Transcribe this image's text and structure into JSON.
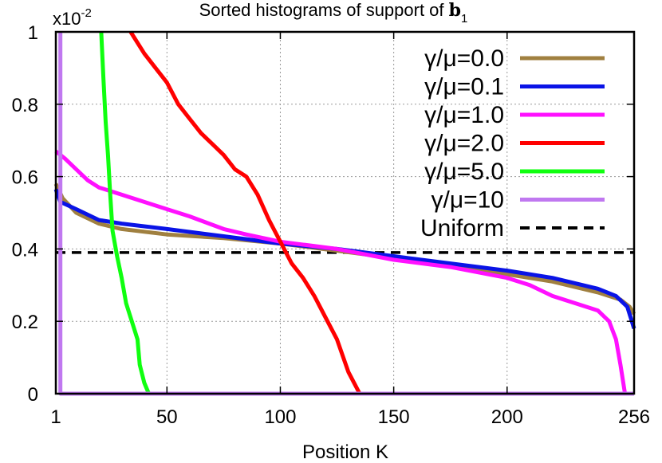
{
  "chart_data": {
    "type": "line",
    "title": "Sorted histograms of support of ",
    "title_symbol": "b",
    "title_subscript": "1",
    "xlabel": "Position K",
    "ylabel": "",
    "y_multiplier": "x10",
    "y_multiplier_exp": "-2",
    "xlim": [
      1,
      256
    ],
    "ylim": [
      0,
      1
    ],
    "x_ticks": [
      1,
      50,
      100,
      150,
      200,
      256
    ],
    "y_ticks": [
      0,
      0.2,
      0.4,
      0.6,
      0.8,
      1
    ],
    "x_tick_labels": [
      "1",
      "50",
      "100",
      "150",
      "200",
      "256"
    ],
    "y_tick_labels": [
      "0",
      "0.2",
      "0.4",
      "0.6",
      "0.8",
      "1"
    ],
    "grid": true,
    "legend_position": "top-right",
    "series": [
      {
        "name": "γ/μ=0.0",
        "color": "#a08040",
        "dash": "solid",
        "points": [
          [
            1,
            0.58
          ],
          [
            4,
            0.54
          ],
          [
            10,
            0.5
          ],
          [
            20,
            0.47
          ],
          [
            30,
            0.455
          ],
          [
            50,
            0.44
          ],
          [
            75,
            0.43
          ],
          [
            100,
            0.415
          ],
          [
            125,
            0.395
          ],
          [
            150,
            0.375
          ],
          [
            175,
            0.355
          ],
          [
            200,
            0.33
          ],
          [
            220,
            0.31
          ],
          [
            240,
            0.28
          ],
          [
            250,
            0.26
          ],
          [
            254,
            0.24
          ],
          [
            256,
            0.22
          ]
        ]
      },
      {
        "name": "γ/μ=0.1",
        "color": "#0a14e6",
        "dash": "solid",
        "points": [
          [
            1,
            0.565
          ],
          [
            3,
            0.53
          ],
          [
            10,
            0.51
          ],
          [
            20,
            0.48
          ],
          [
            30,
            0.47
          ],
          [
            50,
            0.455
          ],
          [
            75,
            0.435
          ],
          [
            100,
            0.415
          ],
          [
            125,
            0.4
          ],
          [
            150,
            0.38
          ],
          [
            175,
            0.36
          ],
          [
            200,
            0.34
          ],
          [
            220,
            0.32
          ],
          [
            240,
            0.29
          ],
          [
            248,
            0.27
          ],
          [
            253,
            0.24
          ],
          [
            256,
            0.18
          ]
        ]
      },
      {
        "name": "γ/μ=1.0",
        "color": "#ff10ff",
        "dash": "solid",
        "points": [
          [
            1,
            0.67
          ],
          [
            5,
            0.65
          ],
          [
            10,
            0.62
          ],
          [
            15,
            0.59
          ],
          [
            20,
            0.57
          ],
          [
            30,
            0.55
          ],
          [
            40,
            0.53
          ],
          [
            50,
            0.51
          ],
          [
            60,
            0.49
          ],
          [
            75,
            0.455
          ],
          [
            85,
            0.44
          ],
          [
            100,
            0.42
          ],
          [
            125,
            0.4
          ],
          [
            150,
            0.37
          ],
          [
            175,
            0.35
          ],
          [
            200,
            0.32
          ],
          [
            210,
            0.3
          ],
          [
            220,
            0.27
          ],
          [
            230,
            0.25
          ],
          [
            240,
            0.23
          ],
          [
            245,
            0.2
          ],
          [
            248,
            0.15
          ],
          [
            250,
            0.08
          ],
          [
            252,
            0.0
          ]
        ]
      },
      {
        "name": "γ/μ=2.0",
        "color": "#ff0000",
        "dash": "solid",
        "points": [
          [
            34,
            1.0
          ],
          [
            40,
            0.94
          ],
          [
            45,
            0.9
          ],
          [
            50,
            0.86
          ],
          [
            55,
            0.8
          ],
          [
            60,
            0.76
          ],
          [
            65,
            0.72
          ],
          [
            70,
            0.69
          ],
          [
            75,
            0.66
          ],
          [
            80,
            0.62
          ],
          [
            85,
            0.6
          ],
          [
            90,
            0.55
          ],
          [
            95,
            0.48
          ],
          [
            100,
            0.42
          ],
          [
            105,
            0.36
          ],
          [
            110,
            0.32
          ],
          [
            115,
            0.27
          ],
          [
            120,
            0.21
          ],
          [
            125,
            0.15
          ],
          [
            130,
            0.06
          ],
          [
            135,
            0.0
          ]
        ]
      },
      {
        "name": "γ/μ=5.0",
        "color": "#10ff10",
        "dash": "solid",
        "points": [
          [
            21,
            1.0
          ],
          [
            22,
            0.87
          ],
          [
            23,
            0.75
          ],
          [
            24,
            0.66
          ],
          [
            25,
            0.55
          ],
          [
            26,
            0.45
          ],
          [
            28,
            0.38
          ],
          [
            30,
            0.32
          ],
          [
            32,
            0.25
          ],
          [
            35,
            0.19
          ],
          [
            37,
            0.15
          ],
          [
            38,
            0.08
          ],
          [
            40,
            0.03
          ],
          [
            42,
            0.0
          ]
        ]
      },
      {
        "name": "γ/μ=10",
        "color": "#c078f0",
        "dash": "solid",
        "points": [
          [
            3,
            1.0
          ],
          [
            3,
            0.0
          ],
          [
            256,
            0.0
          ]
        ]
      },
      {
        "name": "Uniform",
        "color": "#000000",
        "dash": "dashed",
        "points": [
          [
            1,
            0.39
          ],
          [
            256,
            0.39
          ]
        ]
      }
    ]
  }
}
